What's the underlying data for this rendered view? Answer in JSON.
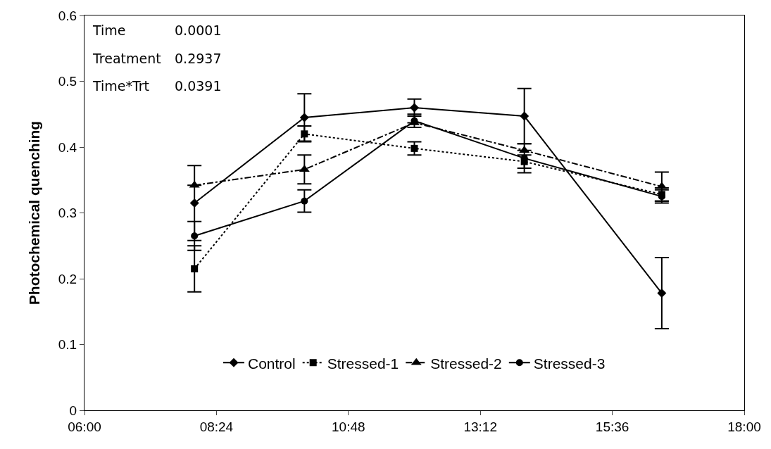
{
  "chart_data": {
    "type": "line",
    "ylabel": "Photochemical quenching",
    "x": [
      8,
      10,
      12,
      14,
      16.5
    ],
    "xlim": [
      6,
      18
    ],
    "xticks": [
      {
        "value": 6,
        "label": "06:00"
      },
      {
        "value": 8.4,
        "label": "08:24"
      },
      {
        "value": 10.8,
        "label": "10:48"
      },
      {
        "value": 13.2,
        "label": "13:12"
      },
      {
        "value": 15.6,
        "label": "15:36"
      },
      {
        "value": 18,
        "label": "18:00"
      }
    ],
    "ylim": [
      0,
      0.6
    ],
    "yticks": [
      0,
      0.1,
      0.2,
      0.3,
      0.4,
      0.5,
      0.6
    ],
    "series": [
      {
        "name": "Control",
        "color": "#000000",
        "marker": "diamond",
        "line_style": "solid",
        "values": [
          0.315,
          0.445,
          0.46,
          0.447,
          0.178
        ],
        "errors": [
          0.057,
          0.036,
          0.013,
          0.042,
          0.054
        ]
      },
      {
        "name": "Stressed-1",
        "color": "#000000",
        "marker": "square",
        "line_style": "dotted",
        "values": [
          0.215,
          0.42,
          0.398,
          0.378,
          0.328
        ],
        "errors": [
          0.035,
          0.012,
          0.01,
          0.01,
          0.01
        ]
      },
      {
        "name": "Stressed-2",
        "color": "#000000",
        "marker": "triangle",
        "line_style": "dashed",
        "values": [
          0.342,
          0.366,
          0.437,
          0.395,
          0.34
        ],
        "errors": [
          null,
          0.022,
          null,
          null,
          0.022
        ]
      },
      {
        "name": "Stressed-3",
        "color": "#000000",
        "marker": "circle",
        "line_style": "solid",
        "values": [
          0.265,
          0.318,
          0.44,
          0.383,
          0.325
        ],
        "errors": [
          0.022,
          0.017,
          0.01,
          0.022,
          0.01
        ]
      }
    ],
    "annotations": [
      "Time",
      "0.0001",
      "Treatment",
      "0.2937",
      "Time*Trt",
      "0.0391"
    ],
    "grid": false,
    "legend": "bottom"
  }
}
